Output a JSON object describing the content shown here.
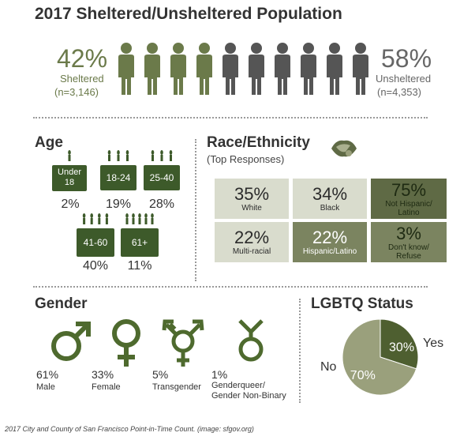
{
  "chart_data": [
    {
      "type": "pictogram",
      "title": "2017 Sheltered/Unsheltered Population",
      "series": [
        {
          "name": "Sheltered",
          "percent": "42%",
          "n": "(n=3,146)",
          "value": 42
        },
        {
          "name": "Unsheltered",
          "percent": "58%",
          "n": "(n=4,353)",
          "value": 58
        }
      ],
      "figures_total": 10,
      "figures_sheltered": 4
    },
    {
      "type": "bar",
      "title": "Age",
      "categories": [
        "Under 18",
        "18-24",
        "25-40",
        "41-60",
        "61+"
      ],
      "labels": [
        "Under\n18",
        "18-24",
        "25-40",
        "41-60",
        "61+"
      ],
      "values": [
        2,
        19,
        28,
        40,
        11
      ],
      "value_labels": [
        "2%",
        "19%",
        "28%",
        "40%",
        "11%"
      ]
    },
    {
      "type": "table",
      "title": "Race/Ethnicity",
      "subtitle": "(Top Responses)",
      "cells": [
        {
          "pct": "35%",
          "label": "White",
          "value": 35
        },
        {
          "pct": "34%",
          "label": "Black",
          "value": 34
        },
        {
          "pct": "75%",
          "label": "Not Hispanic/\nLatino",
          "value": 75
        },
        {
          "pct": "22%",
          "label": "Multi-racial",
          "value": 22
        },
        {
          "pct": "22%",
          "label": "Hispanic/Latino",
          "value": 22
        },
        {
          "pct": "3%",
          "label": "Don't know/\nRefuse",
          "value": 3
        }
      ]
    },
    {
      "type": "bar",
      "title": "Gender",
      "categories": [
        "Male",
        "Female",
        "Transgender",
        "Genderqueer/ Gender Non-Binary"
      ],
      "values": [
        61,
        33,
        5,
        1
      ],
      "value_labels": [
        "61%",
        "33%",
        "5%",
        "1%"
      ],
      "labels": [
        "Male",
        "Female",
        "Transgender",
        "Genderqueer/\nGender Non-Binary"
      ]
    },
    {
      "type": "pie",
      "title": "LGBTQ Status",
      "slices": [
        {
          "name": "Yes",
          "value": 30,
          "label": "30%"
        },
        {
          "name": "No",
          "value": 70,
          "label": "70%"
        }
      ]
    }
  ],
  "caption": "2017 City and County of San Francisco Point-in-Time Count. (image: sfgov.org)",
  "colors": {
    "sheltered": "#6b7a4a",
    "unsheltered": "#555555",
    "cake": "#3d5a2a",
    "cell_light": "#d9dccd",
    "cell_mid": "#7b8460",
    "cell_dark": "#5f6a45",
    "pie_yes": "#4e5f30",
    "pie_no": "#9aa07c",
    "gender_icon": "#4e6a2e"
  }
}
